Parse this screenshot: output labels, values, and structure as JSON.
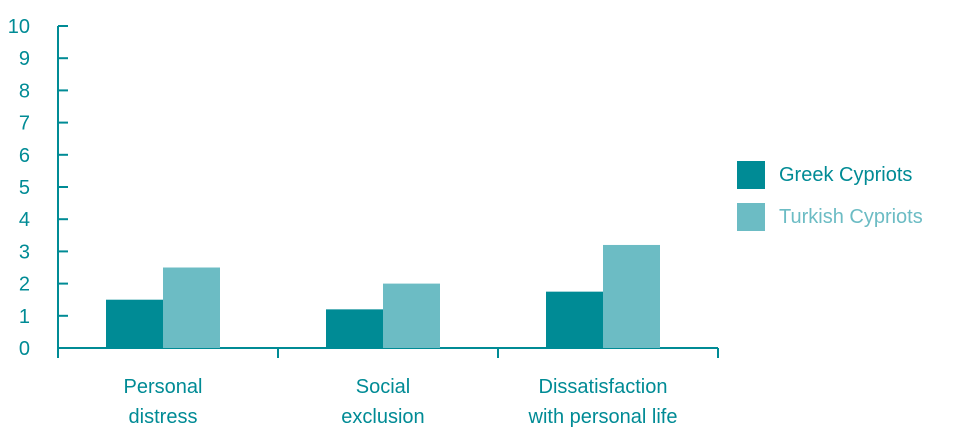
{
  "chart_data": {
    "type": "bar",
    "title": "",
    "xlabel": "",
    "ylabel": "",
    "categories": [
      [
        "Personal",
        "distress"
      ],
      [
        "Social",
        "exclusion"
      ],
      [
        "Dissatisfaction",
        "with personal life"
      ]
    ],
    "series": [
      {
        "name": "Greek Cypriots",
        "color": "#008b95",
        "values": [
          1.5,
          1.2,
          1.75
        ]
      },
      {
        "name": "Turkish Cypriots",
        "color": "#6cbcc4",
        "values": [
          2.5,
          2.0,
          3.2
        ]
      }
    ],
    "ylim": [
      0,
      10
    ],
    "yticks": [
      "0",
      "1",
      "2",
      "3",
      "4",
      "5",
      "6",
      "7",
      "8",
      "9",
      "10"
    ],
    "axis_color": "#008b95",
    "text_color": "#008b95",
    "grid": false,
    "legend_position": "right"
  }
}
